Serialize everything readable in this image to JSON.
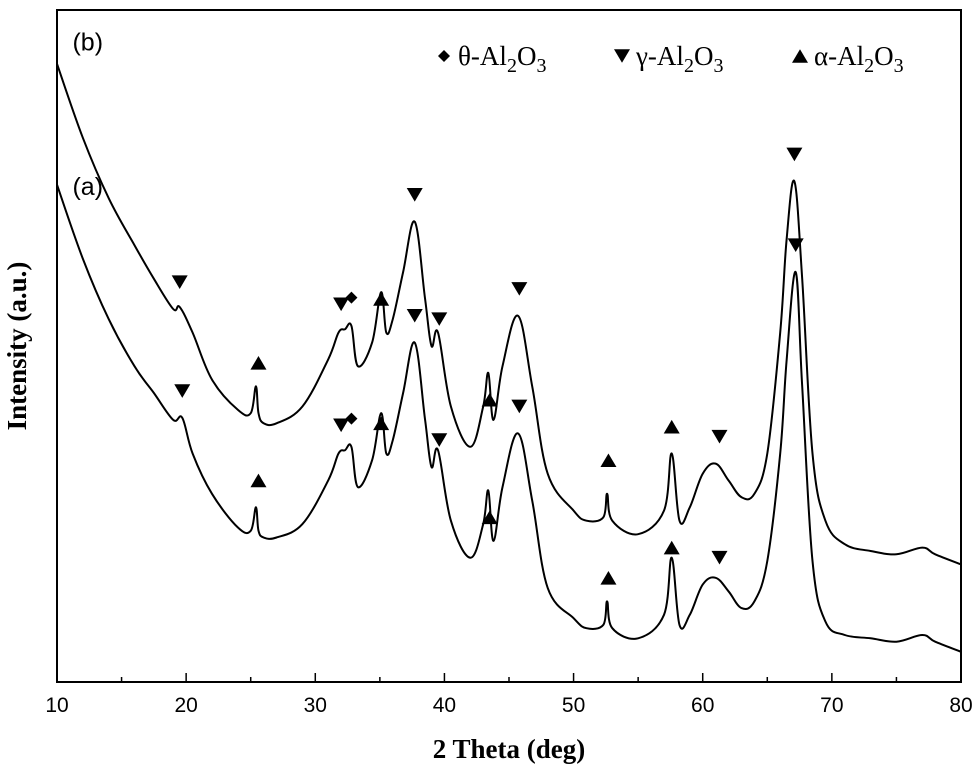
{
  "chart_data": {
    "type": "line",
    "xlabel": "2 Theta (deg)",
    "ylabel": "Intensity (a.u.)",
    "xlim": [
      10,
      80
    ],
    "ylim": [
      0,
      1
    ],
    "x_ticks": [
      "10",
      "20",
      "30",
      "40",
      "50",
      "60",
      "70",
      "80"
    ],
    "y_ticks_shown": false,
    "grid": false,
    "legend": {
      "placement": "top-right",
      "entries": [
        {
          "marker": "diamond",
          "text": "θ-Al",
          "sub1": "2",
          "mid": "O",
          "sub2": "3"
        },
        {
          "marker": "triangle-down",
          "text": "γ-Al",
          "sub1": "2",
          "mid": "O",
          "sub2": "3"
        },
        {
          "marker": "triangle-up",
          "text": "α-Al",
          "sub1": "2",
          "mid": "O",
          "sub2": "3"
        }
      ]
    },
    "series": [
      {
        "name": "(b)",
        "x": [
          10,
          12,
          14,
          16,
          17.5,
          19,
          19.5,
          20.5,
          22,
          24,
          25,
          25.4,
          25.6,
          26,
          27,
          29,
          31,
          31.8,
          32.3,
          32.8,
          33.3,
          34.4,
          35.1,
          35.5,
          36,
          36.8,
          37.7,
          38.5,
          39,
          39.5,
          40.5,
          42,
          43,
          43.4,
          43.8,
          44.5,
          45.7,
          46.8,
          48,
          50,
          51,
          52.3,
          52.6,
          53,
          55,
          57,
          57.6,
          58.2,
          59,
          60,
          61,
          62,
          63,
          64,
          65,
          66,
          66.5,
          67.1,
          67.7,
          68.5,
          69.5,
          71,
          73,
          75,
          77,
          78,
          80
        ],
        "y": [
          0.92,
          0.81,
          0.72,
          0.65,
          0.6,
          0.555,
          0.558,
          0.52,
          0.45,
          0.405,
          0.4,
          0.44,
          0.4,
          0.385,
          0.385,
          0.41,
          0.48,
          0.52,
          0.525,
          0.53,
          0.47,
          0.505,
          0.58,
          0.52,
          0.54,
          0.61,
          0.685,
          0.57,
          0.5,
          0.52,
          0.41,
          0.35,
          0.41,
          0.46,
          0.39,
          0.47,
          0.545,
          0.44,
          0.31,
          0.255,
          0.24,
          0.245,
          0.28,
          0.24,
          0.22,
          0.255,
          0.34,
          0.24,
          0.26,
          0.31,
          0.325,
          0.3,
          0.275,
          0.28,
          0.34,
          0.52,
          0.66,
          0.745,
          0.6,
          0.34,
          0.24,
          0.205,
          0.195,
          0.19,
          0.2,
          0.19,
          0.175
        ]
      },
      {
        "name": "(a)",
        "x": [
          10,
          12,
          14,
          16,
          17.5,
          19,
          19.7,
          20.5,
          22,
          24,
          25,
          25.4,
          25.6,
          26,
          27,
          29,
          31,
          31.8,
          32.3,
          32.8,
          33.3,
          34.4,
          35.1,
          35.5,
          36,
          36.8,
          37.7,
          38.5,
          39,
          39.5,
          40.5,
          42,
          43,
          43.4,
          43.8,
          44.5,
          45.7,
          46.8,
          48,
          50,
          51,
          52.3,
          52.6,
          53,
          55,
          57,
          57.6,
          58.2,
          59,
          60,
          61,
          62,
          63,
          64,
          65,
          66,
          66.5,
          67.2,
          67.7,
          68.5,
          69.5,
          71,
          73,
          75,
          77,
          78,
          80
        ],
        "y": [
          0.74,
          0.63,
          0.54,
          0.47,
          0.43,
          0.39,
          0.393,
          0.34,
          0.28,
          0.23,
          0.225,
          0.26,
          0.225,
          0.215,
          0.215,
          0.235,
          0.3,
          0.34,
          0.345,
          0.35,
          0.29,
          0.33,
          0.4,
          0.34,
          0.36,
          0.43,
          0.505,
          0.39,
          0.32,
          0.345,
          0.24,
          0.185,
          0.235,
          0.285,
          0.21,
          0.29,
          0.37,
          0.27,
          0.14,
          0.095,
          0.08,
          0.085,
          0.12,
          0.08,
          0.065,
          0.1,
          0.185,
          0.085,
          0.1,
          0.145,
          0.155,
          0.135,
          0.11,
          0.12,
          0.18,
          0.34,
          0.48,
          0.61,
          0.44,
          0.18,
          0.09,
          0.07,
          0.065,
          0.06,
          0.07,
          0.06,
          0.045
        ]
      }
    ],
    "curve_labels": [
      {
        "text": "(b)",
        "x": 11.2,
        "y": 0.94
      },
      {
        "text": "(a)",
        "x": 11.2,
        "y": 0.725
      }
    ],
    "annotations": [
      {
        "series": "(b)",
        "phase": "γ",
        "x": 19.5,
        "y": 0.595
      },
      {
        "series": "(b)",
        "phase": "α",
        "x": 25.6,
        "y": 0.475
      },
      {
        "series": "(b)",
        "phase": "γ",
        "x": 32.0,
        "y": 0.562
      },
      {
        "series": "(b)",
        "phase": "θ",
        "x": 32.8,
        "y": 0.572
      },
      {
        "series": "(b)",
        "phase": "α",
        "x": 35.1,
        "y": 0.57
      },
      {
        "series": "(b)",
        "phase": "γ",
        "x": 37.7,
        "y": 0.725
      },
      {
        "series": "(b)",
        "phase": "γ",
        "x": 39.6,
        "y": 0.54
      },
      {
        "series": "(b)",
        "phase": "α",
        "x": 43.5,
        "y": 0.42
      },
      {
        "series": "(b)",
        "phase": "γ",
        "x": 45.8,
        "y": 0.585
      },
      {
        "series": "(b)",
        "phase": "α",
        "x": 52.7,
        "y": 0.33
      },
      {
        "series": "(b)",
        "phase": "α",
        "x": 57.6,
        "y": 0.38
      },
      {
        "series": "(b)",
        "phase": "γ",
        "x": 61.3,
        "y": 0.365
      },
      {
        "series": "(b)",
        "phase": "γ",
        "x": 67.1,
        "y": 0.785
      },
      {
        "series": "(a)",
        "phase": "γ",
        "x": 19.7,
        "y": 0.433
      },
      {
        "series": "(a)",
        "phase": "α",
        "x": 25.6,
        "y": 0.3
      },
      {
        "series": "(a)",
        "phase": "γ",
        "x": 32.0,
        "y": 0.382
      },
      {
        "series": "(a)",
        "phase": "θ",
        "x": 32.8,
        "y": 0.392
      },
      {
        "series": "(a)",
        "phase": "α",
        "x": 35.1,
        "y": 0.385
      },
      {
        "series": "(a)",
        "phase": "γ",
        "x": 37.7,
        "y": 0.545
      },
      {
        "series": "(a)",
        "phase": "γ",
        "x": 39.6,
        "y": 0.36
      },
      {
        "series": "(a)",
        "phase": "α",
        "x": 43.5,
        "y": 0.245
      },
      {
        "series": "(a)",
        "phase": "γ",
        "x": 45.8,
        "y": 0.41
      },
      {
        "series": "(a)",
        "phase": "α",
        "x": 52.7,
        "y": 0.155
      },
      {
        "series": "(a)",
        "phase": "α",
        "x": 57.6,
        "y": 0.2
      },
      {
        "series": "(a)",
        "phase": "γ",
        "x": 61.3,
        "y": 0.185
      },
      {
        "series": "(a)",
        "phase": "γ",
        "x": 67.2,
        "y": 0.65
      }
    ]
  }
}
